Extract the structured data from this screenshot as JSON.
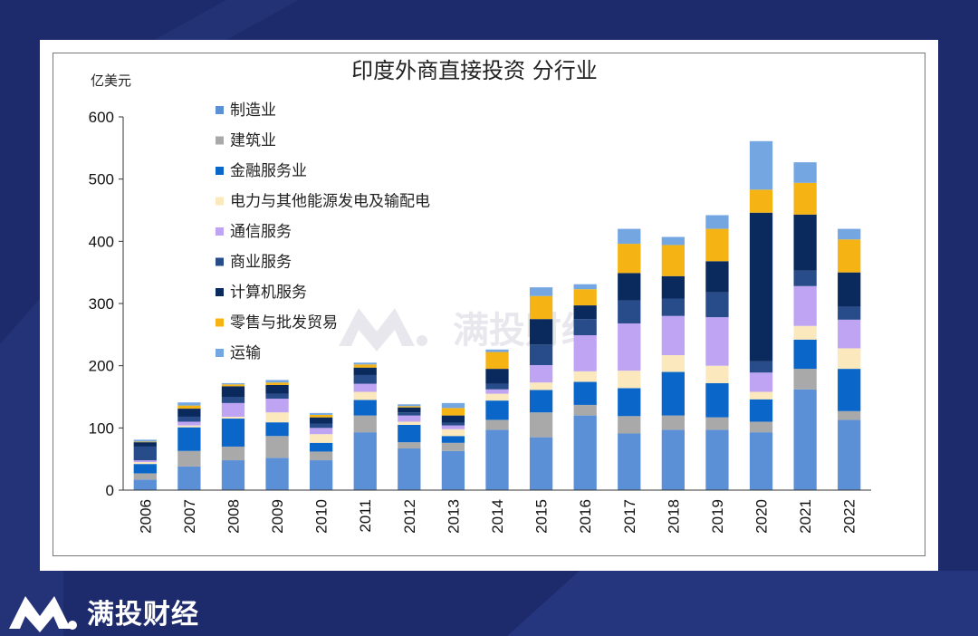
{
  "page": {
    "brand_name": "满投财经",
    "watermark_text": "满投财经",
    "background_color": "#1d2a6b"
  },
  "chart_data": {
    "type": "bar",
    "stacked": true,
    "title": "印度外商直接投资 分行业",
    "unit_label": "亿美元",
    "xlabel": "",
    "ylabel": "",
    "ylim": [
      0,
      600
    ],
    "yticks": [
      0,
      100,
      200,
      300,
      400,
      500,
      600
    ],
    "grid": false,
    "legend_position": "top-left",
    "categories": [
      "2006",
      "2007",
      "2008",
      "2009",
      "2010",
      "2011",
      "2012",
      "2013",
      "2014",
      "2015",
      "2016",
      "2017",
      "2018",
      "2019",
      "2020",
      "2021",
      "2022"
    ],
    "series": [
      {
        "name": "制造业",
        "color": "#5b8fd6",
        "values": [
          17,
          38,
          48,
          52,
          48,
          93,
          67,
          63,
          97,
          85,
          120,
          91,
          97,
          97,
          93,
          162,
          113
        ]
      },
      {
        "name": "建筑业",
        "color": "#a9a9a9",
        "values": [
          10,
          25,
          22,
          35,
          14,
          27,
          10,
          13,
          16,
          40,
          17,
          28,
          23,
          20,
          17,
          33,
          14
        ]
      },
      {
        "name": "金融服务业",
        "color": "#0b66c9",
        "values": [
          15,
          38,
          45,
          22,
          14,
          25,
          28,
          11,
          31,
          36,
          37,
          45,
          70,
          55,
          36,
          47,
          68
        ]
      },
      {
        "name": "电力与其他能源发电及输配电",
        "color": "#fce8bd",
        "values": [
          3,
          3,
          3,
          16,
          14,
          13,
          5,
          11,
          11,
          12,
          17,
          28,
          27,
          28,
          12,
          22,
          33
        ]
      },
      {
        "name": "通信服务",
        "color": "#bea4f3",
        "values": [
          3,
          6,
          22,
          22,
          10,
          13,
          10,
          6,
          7,
          28,
          58,
          76,
          63,
          78,
          31,
          64,
          46
        ]
      },
      {
        "name": "商业服务",
        "color": "#284b8a",
        "values": [
          22,
          8,
          10,
          8,
          7,
          14,
          5,
          4,
          9,
          33,
          26,
          37,
          28,
          40,
          18,
          25,
          21
        ]
      },
      {
        "name": "计算机服务",
        "color": "#0a2a5e",
        "values": [
          7,
          13,
          17,
          14,
          10,
          12,
          8,
          12,
          24,
          41,
          22,
          44,
          36,
          50,
          239,
          90,
          55
        ]
      },
      {
        "name": "零售与批发贸易",
        "color": "#f5b414",
        "values": [
          1,
          5,
          3,
          4,
          4,
          5,
          2,
          12,
          27,
          37,
          26,
          47,
          50,
          52,
          37,
          51,
          53
        ]
      },
      {
        "name": "运输",
        "color": "#74a7e2",
        "values": [
          3,
          5,
          2,
          4,
          3,
          3,
          3,
          8,
          4,
          14,
          8,
          24,
          13,
          22,
          78,
          33,
          17
        ]
      }
    ]
  }
}
